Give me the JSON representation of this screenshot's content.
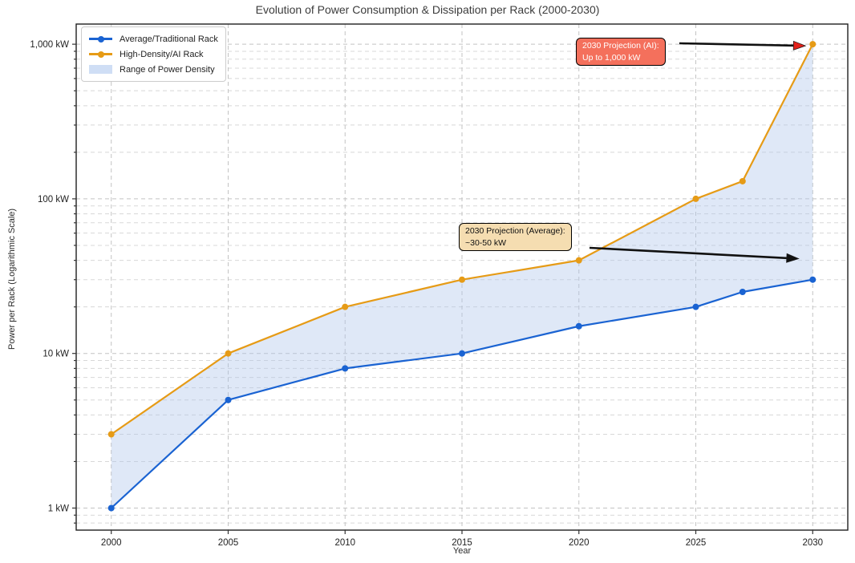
{
  "chart_data": {
    "type": "line",
    "title": "Evolution of Power Consumption & Dissipation per Rack (2000-2030)",
    "xlabel": "Year",
    "ylabel": "Power per Rack (Logarithmic Scale)",
    "y_scale": "log",
    "x": [
      2000,
      2005,
      2010,
      2015,
      2020,
      2025,
      2027,
      2030
    ],
    "series": [
      {
        "name": "Average/Traditional Rack",
        "color": "#1a63d2",
        "marker": "circle",
        "values": [
          1,
          5,
          8,
          10,
          15,
          20,
          25,
          30
        ]
      },
      {
        "name": "High-Density/AI Rack",
        "color": "#e69b16",
        "marker": "circle",
        "values": [
          3,
          10,
          20,
          30,
          40,
          100,
          130,
          1000
        ]
      }
    ],
    "fill_between": {
      "label": "Range of Power Density",
      "color": "#aec6eb",
      "opacity": 0.4,
      "swatch": "#cfdef5"
    },
    "x_range": [
      1998.5,
      2031.5
    ],
    "y_range": [
      0.72,
      1350
    ],
    "x_ticks": [
      2000,
      2005,
      2010,
      2015,
      2020,
      2025,
      2030
    ],
    "y_ticks": [
      {
        "value": 1,
        "label": "1 kW"
      },
      {
        "value": 10,
        "label": "10 kW"
      },
      {
        "value": 100,
        "label": "100 kW"
      },
      {
        "value": 1000,
        "label": "1,000 kW"
      }
    ],
    "grid": "dashed major + minor (log decades)",
    "legend_position": "upper-left"
  },
  "annotations": [
    {
      "lines": [
        "2030 Projection (AI):",
        "Up to 1,000 kW"
      ],
      "box_color": "#f4705c",
      "text_color": "#ffffff",
      "border_color": "#000000",
      "arrow_color": "#111111",
      "head_color": "#e3211a",
      "target_year": 2030,
      "target_kw": 1000
    },
    {
      "lines": [
        "2030 Projection (Average):",
        "~30-50 kW"
      ],
      "box_color": "#f5ddb1",
      "text_color": "#111111",
      "border_color": "#000000",
      "arrow_color": "#111111",
      "head_color": "#111111",
      "target_year": 2029.4,
      "target_kw": 41
    }
  ]
}
